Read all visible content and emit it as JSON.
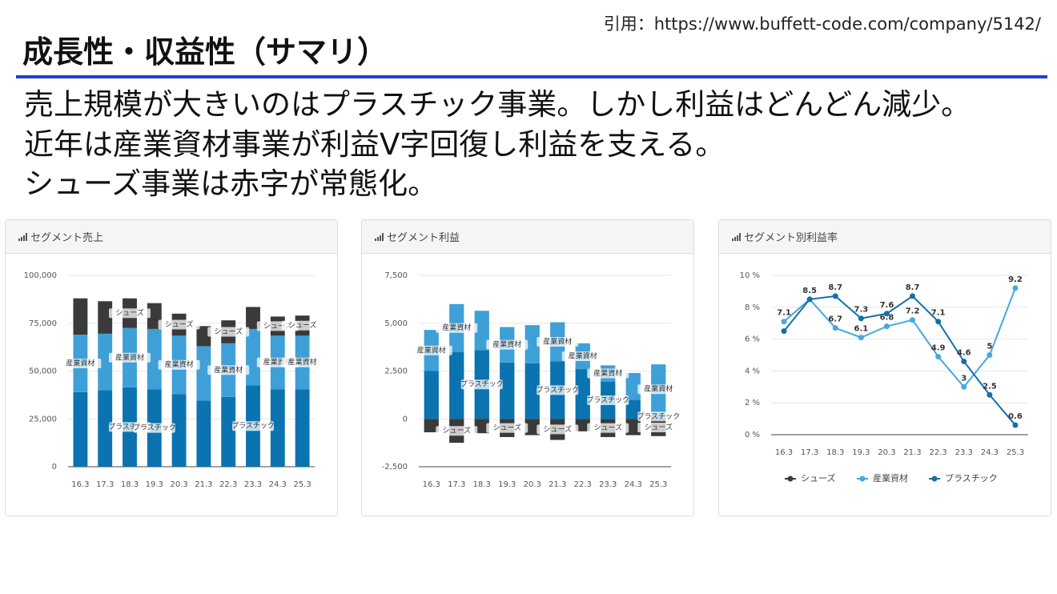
{
  "slide": {
    "title": "成長性・収益性（サマリ）",
    "source": "引用：https://www.buffett-code.com/company/5142/",
    "body": [
      "売上規模が大きいのはプラスチック事業。しかし利益はどんどん減少。",
      "近年は産業資材事業が利益V字回復し利益を支える。",
      "シューズ事業は赤字が常態化。"
    ]
  },
  "chart_data": [
    {
      "type": "bar",
      "stacked": true,
      "title": "セグメント売上",
      "categories": [
        "16.3",
        "17.3",
        "18.3",
        "19.3",
        "20.3",
        "21.3",
        "22.3",
        "23.3",
        "24.3",
        "25.3"
      ],
      "series": [
        {
          "name": "プラスチック",
          "color": "#0b73b0",
          "values": [
            39000,
            40000,
            41500,
            40500,
            38000,
            34500,
            36500,
            42500,
            40500,
            40500
          ]
        },
        {
          "name": "産業資材",
          "color": "#3fa0d8",
          "values": [
            30000,
            29500,
            31000,
            31500,
            30500,
            28500,
            28000,
            29500,
            28000,
            28000
          ]
        },
        {
          "name": "シューズ",
          "color": "#3a3a3a",
          "values": [
            19000,
            17000,
            15500,
            13500,
            11500,
            10500,
            12000,
            11500,
            10000,
            10500
          ]
        }
      ],
      "ylim": [
        0,
        100000
      ],
      "yticks": [
        0,
        {
          "value": 25000,
          "label": "25,000"
        },
        {
          "value": 50000,
          "label": "50,000"
        },
        {
          "value": 75000,
          "label": "75,000"
        },
        {
          "value": 100000,
          "label": "100,000"
        }
      ],
      "grid": true
    },
    {
      "type": "bar",
      "stacked": true,
      "title": "セグメント利益",
      "categories": [
        "16.3",
        "17.3",
        "18.3",
        "19.3",
        "20.3",
        "21.3",
        "22.3",
        "23.3",
        "24.3",
        "25.3"
      ],
      "series": [
        {
          "name": "プラスチック",
          "color": "#0b73b0",
          "values": [
            2500,
            3500,
            3600,
            2950,
            2900,
            3000,
            2600,
            1950,
            1000,
            250
          ]
        },
        {
          "name": "産業資材",
          "color": "#3fa0d8",
          "values": [
            2150,
            2500,
            2050,
            1850,
            2000,
            2050,
            1350,
            850,
            1400,
            2600
          ]
        },
        {
          "name": "シューズ",
          "color": "#3a3a3a",
          "values": [
            -700,
            -1250,
            -750,
            -950,
            -850,
            -1100,
            -650,
            -950,
            -850,
            -900
          ]
        }
      ],
      "ylim": [
        -2500,
        7500
      ],
      "yticks": [
        {
          "value": -2500,
          "label": "-2,500"
        },
        0,
        {
          "value": 2500,
          "label": "2,500"
        },
        {
          "value": 5000,
          "label": "5,000"
        },
        {
          "value": 7500,
          "label": "7,500"
        }
      ],
      "grid": true
    },
    {
      "type": "line",
      "title": "セグメント別利益率",
      "categories": [
        "16.3",
        "17.3",
        "18.3",
        "19.3",
        "20.3",
        "21.3",
        "22.3",
        "23.3",
        "24.3",
        "25.3"
      ],
      "series": [
        {
          "name": "シューズ",
          "color": "#3a3a3a",
          "values": [
            null,
            null,
            null,
            null,
            null,
            null,
            null,
            null,
            null,
            null
          ]
        },
        {
          "name": "産業資材",
          "color": "#48a7dc",
          "values": [
            7.1,
            8.5,
            6.7,
            6.1,
            6.8,
            7.2,
            4.9,
            3,
            5,
            9.2
          ]
        },
        {
          "name": "プラスチック",
          "color": "#1470a6",
          "values": [
            6.5,
            8.5,
            8.7,
            7.3,
            7.6,
            8.7,
            7.1,
            4.6,
            2.5,
            0.6
          ]
        }
      ],
      "ylim": [
        0,
        10
      ],
      "yticks": [
        {
          "value": 0,
          "label": "0 %"
        },
        {
          "value": 2,
          "label": "2 %"
        },
        {
          "value": 4,
          "label": "4 %"
        },
        {
          "value": 6,
          "label": "6 %"
        },
        {
          "value": 8,
          "label": "8 %"
        },
        {
          "value": 10,
          "label": "10 %"
        }
      ],
      "grid": true,
      "legend": "bottom"
    }
  ]
}
